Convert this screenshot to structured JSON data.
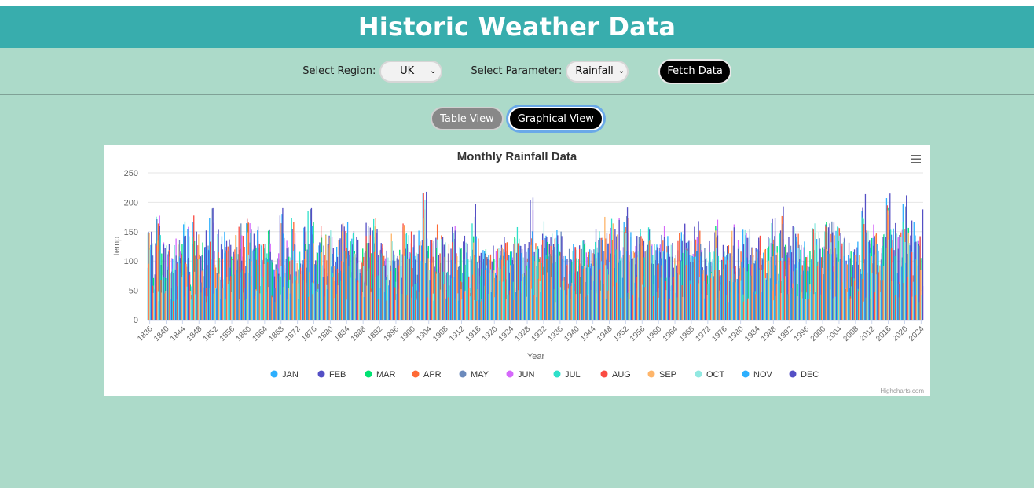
{
  "app": {
    "title": "Historic Weather Data"
  },
  "controls": {
    "region_label": "Select Region:",
    "region_value": "UK",
    "parameter_label": "Select Parameter:",
    "parameter_value": "Rainfall",
    "fetch_label": "Fetch Data"
  },
  "views": {
    "table_label": "Table View",
    "graph_label": "Graphical View",
    "active": "graph"
  },
  "chart_data": {
    "type": "bar",
    "title": "Monthly Rainfall Data",
    "xlabel": "Year",
    "ylabel": "temp",
    "ylim": [
      0,
      250
    ],
    "yticks": [
      0,
      50,
      100,
      150,
      200,
      250
    ],
    "xlim": [
      1836,
      2024
    ],
    "xticks": [
      1836,
      1840,
      1844,
      1848,
      1852,
      1856,
      1860,
      1864,
      1868,
      1872,
      1876,
      1880,
      1884,
      1888,
      1892,
      1896,
      1900,
      1904,
      1908,
      1912,
      1916,
      1920,
      1924,
      1928,
      1932,
      1936,
      1940,
      1944,
      1948,
      1952,
      1956,
      1960,
      1964,
      1968,
      1972,
      1976,
      1980,
      1984,
      1988,
      1992,
      1996,
      2000,
      2004,
      2008,
      2012,
      2016,
      2020,
      2024
    ],
    "legend_position": "bottom",
    "series": [
      {
        "name": "JAN",
        "color": "#2caffe"
      },
      {
        "name": "FEB",
        "color": "#544fc5"
      },
      {
        "name": "MAR",
        "color": "#00e272"
      },
      {
        "name": "APR",
        "color": "#fe6a35"
      },
      {
        "name": "MAY",
        "color": "#6b8abc"
      },
      {
        "name": "JUN",
        "color": "#d568fb"
      },
      {
        "name": "JUL",
        "color": "#2ee0ca"
      },
      {
        "name": "AUG",
        "color": "#fa4b42"
      },
      {
        "name": "SEP",
        "color": "#feb56a"
      },
      {
        "name": "OCT",
        "color": "#91e8e1"
      },
      {
        "name": "NOV",
        "color": "#2caffe"
      },
      {
        "name": "DEC",
        "color": "#544fc5"
      }
    ],
    "annual_peaks_approx": {
      "1836": 150,
      "1851": 190,
      "1868": 190,
      "1875": 190,
      "1903": 218,
      "1915": 197,
      "1929": 208,
      "1952": 191,
      "1990": 193,
      "2010": 214,
      "2016": 215,
      "2020": 212,
      "2024": 188
    },
    "credit": "Highcharts.com",
    "menu_icon": "hamburger-menu-icon"
  }
}
